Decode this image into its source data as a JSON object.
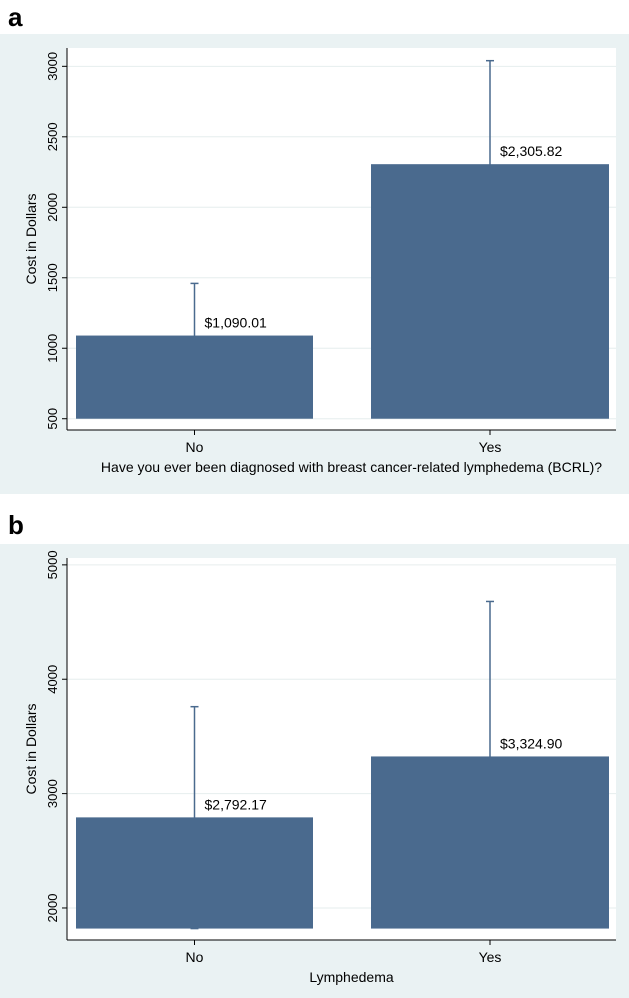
{
  "chart_data": [
    {
      "panel_label": "a",
      "type": "bar",
      "categories": [
        "No",
        "Yes"
      ],
      "values": [
        1090.01,
        2305.82
      ],
      "error_bars": [
        [
          720,
          1460
        ],
        [
          1570,
          3040
        ]
      ],
      "value_labels": [
        "$1,090.01",
        "$2,305.82"
      ],
      "xlabel": "Have you ever been diagnosed with breast cancer-related lymphedema (BCRL)?",
      "ylabel": "Cost in Dollars",
      "yticks": [
        500,
        1000,
        1500,
        2000,
        2500,
        3000
      ],
      "ylim": [
        420,
        3130
      ],
      "bar_base": 500,
      "grid": true,
      "colors": {
        "bar": "#4a6a8e",
        "plot_bg": "#ffffff",
        "outer_bg": "#eaf2f3",
        "grid": "#e6eeee"
      }
    },
    {
      "panel_label": "b",
      "type": "bar",
      "categories": [
        "No",
        "Yes"
      ],
      "values": [
        2792.17,
        3324.9
      ],
      "error_bars": [
        [
          1820,
          3760
        ],
        [
          1960,
          4680
        ]
      ],
      "value_labels": [
        "$2,792.17",
        "$3,324.90"
      ],
      "xlabel": "Lymphedema",
      "ylabel": "Cost in Dollars",
      "yticks": [
        2000,
        3000,
        4000,
        5000
      ],
      "ylim": [
        1720,
        5060
      ],
      "bar_base": 1820,
      "grid": true,
      "colors": {
        "bar": "#4a6a8e",
        "plot_bg": "#ffffff",
        "outer_bg": "#eaf2f3",
        "grid": "#e6eeee"
      }
    }
  ]
}
